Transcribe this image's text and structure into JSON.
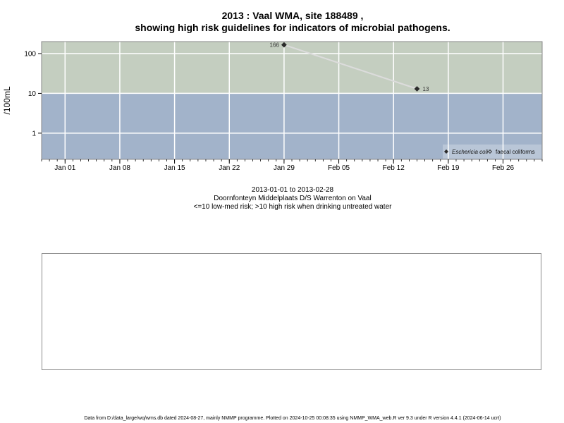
{
  "chart_data": {
    "type": "line",
    "title_line1": "2013 : Vaal WMA, site 188489 ,",
    "title_line2": "showing high risk guidelines for indicators of microbial pathogens.",
    "ylabel": "/100mL",
    "y_scale": "log",
    "y_ticks": [
      {
        "value": 100,
        "label": "100"
      },
      {
        "value": 10,
        "label": "10"
      },
      {
        "value": 1,
        "label": "1"
      }
    ],
    "x_ticks": [
      {
        "date": "2013-01-01",
        "label": "Jan 01"
      },
      {
        "date": "2013-01-08",
        "label": "Jan 08"
      },
      {
        "date": "2013-01-15",
        "label": "Jan 15"
      },
      {
        "date": "2013-01-22",
        "label": "Jan 22"
      },
      {
        "date": "2013-01-29",
        "label": "Jan 29"
      },
      {
        "date": "2013-02-05",
        "label": "Feb 05"
      },
      {
        "date": "2013-02-12",
        "label": "Feb 12"
      },
      {
        "date": "2013-02-19",
        "label": "Feb 19"
      },
      {
        "date": "2013-02-26",
        "label": "Feb 26"
      }
    ],
    "xlim": [
      "2012-12-29",
      "2013-03-03"
    ],
    "ylim": [
      0.22,
      200
    ],
    "risk_threshold": 10,
    "zones": {
      "high_risk_color": "#c4cec0",
      "low_risk_color": "#a2b3ca"
    },
    "grid": true,
    "series": [
      {
        "name": "Eschericia coli",
        "marker": "filled-diamond",
        "color": "#2b2b2b",
        "line_color": "#dcdcdc",
        "points": [
          {
            "x": "2013-01-29",
            "y": 166,
            "label": "166"
          },
          {
            "x": "2013-02-15",
            "y": 13,
            "label": "13"
          }
        ]
      },
      {
        "name": "faecal coliforms",
        "marker": "open-diamond",
        "color": "#2b2b2b",
        "points": []
      }
    ],
    "legend": {
      "placement": "bottom-right"
    }
  },
  "captions": {
    "date_range": "2013-01-01 to 2013-02-28",
    "site_name": "Doornfonteyn Middelplaats D/S Warrenton on Vaal",
    "risk_note": "<=10 low-med risk; >10 high risk when drinking untreated water"
  },
  "footer": "Data from D:/data_large/wq/wms.db dated 2024-08-27, mainly NMMP programme. Plotted on 2024-10-25 00:08:35 using NMMP_WMA_web.R ver 9.3 under R version 4.4.1 (2024-06-14 ucrt)"
}
